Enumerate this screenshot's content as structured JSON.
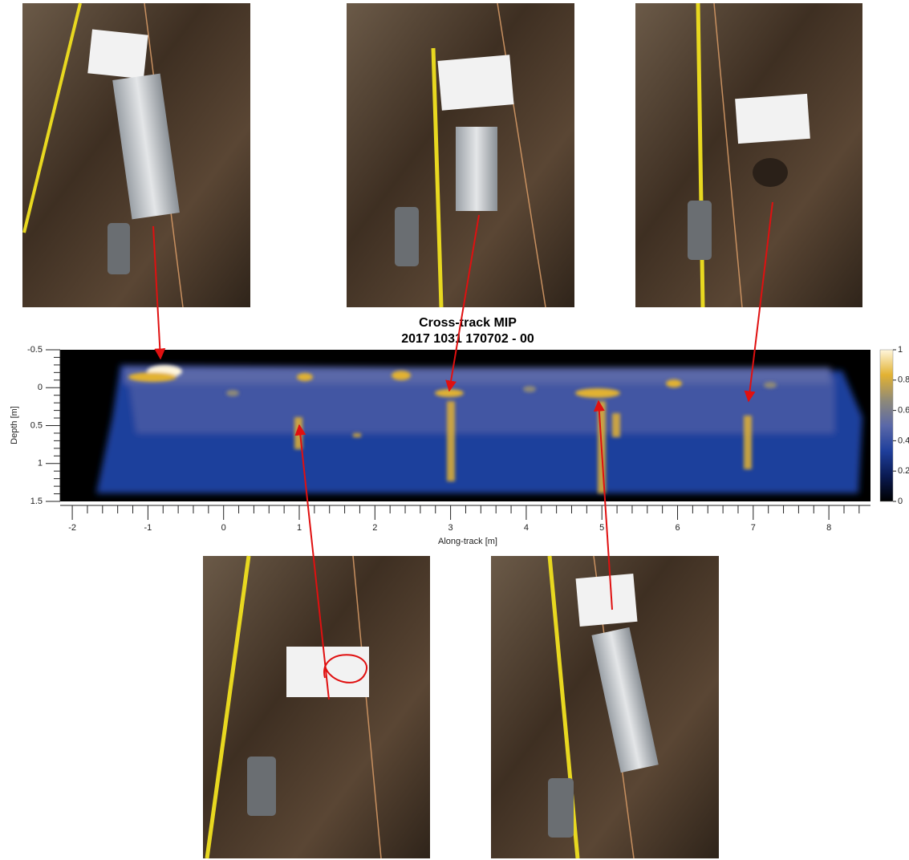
{
  "chart_data": {
    "type": "heatmap",
    "title": [
      "Cross-track MIP",
      "2017 1031 170702 - 00"
    ],
    "xlabel": "Along-track [m]",
    "ylabel": "Depth [m]",
    "xlim": [
      -2.16,
      8.55
    ],
    "xticks": [
      -2,
      -1,
      0,
      1,
      2,
      3,
      4,
      5,
      6,
      7,
      8
    ],
    "ylim": [
      -0.5,
      1.5
    ],
    "yticks": [
      -0.5,
      0,
      0.5,
      1,
      1.5
    ],
    "y_reversed": true,
    "colormap": [
      "#000000",
      "#0a1a52",
      "#1f3f9c",
      "#5a68a8",
      "#8f8a78",
      "#e2b232",
      "#fff6dc"
    ],
    "clim": [
      0,
      1
    ],
    "cticks": [
      0,
      0.2,
      0.4,
      0.6,
      0.8,
      1
    ]
  }
}
